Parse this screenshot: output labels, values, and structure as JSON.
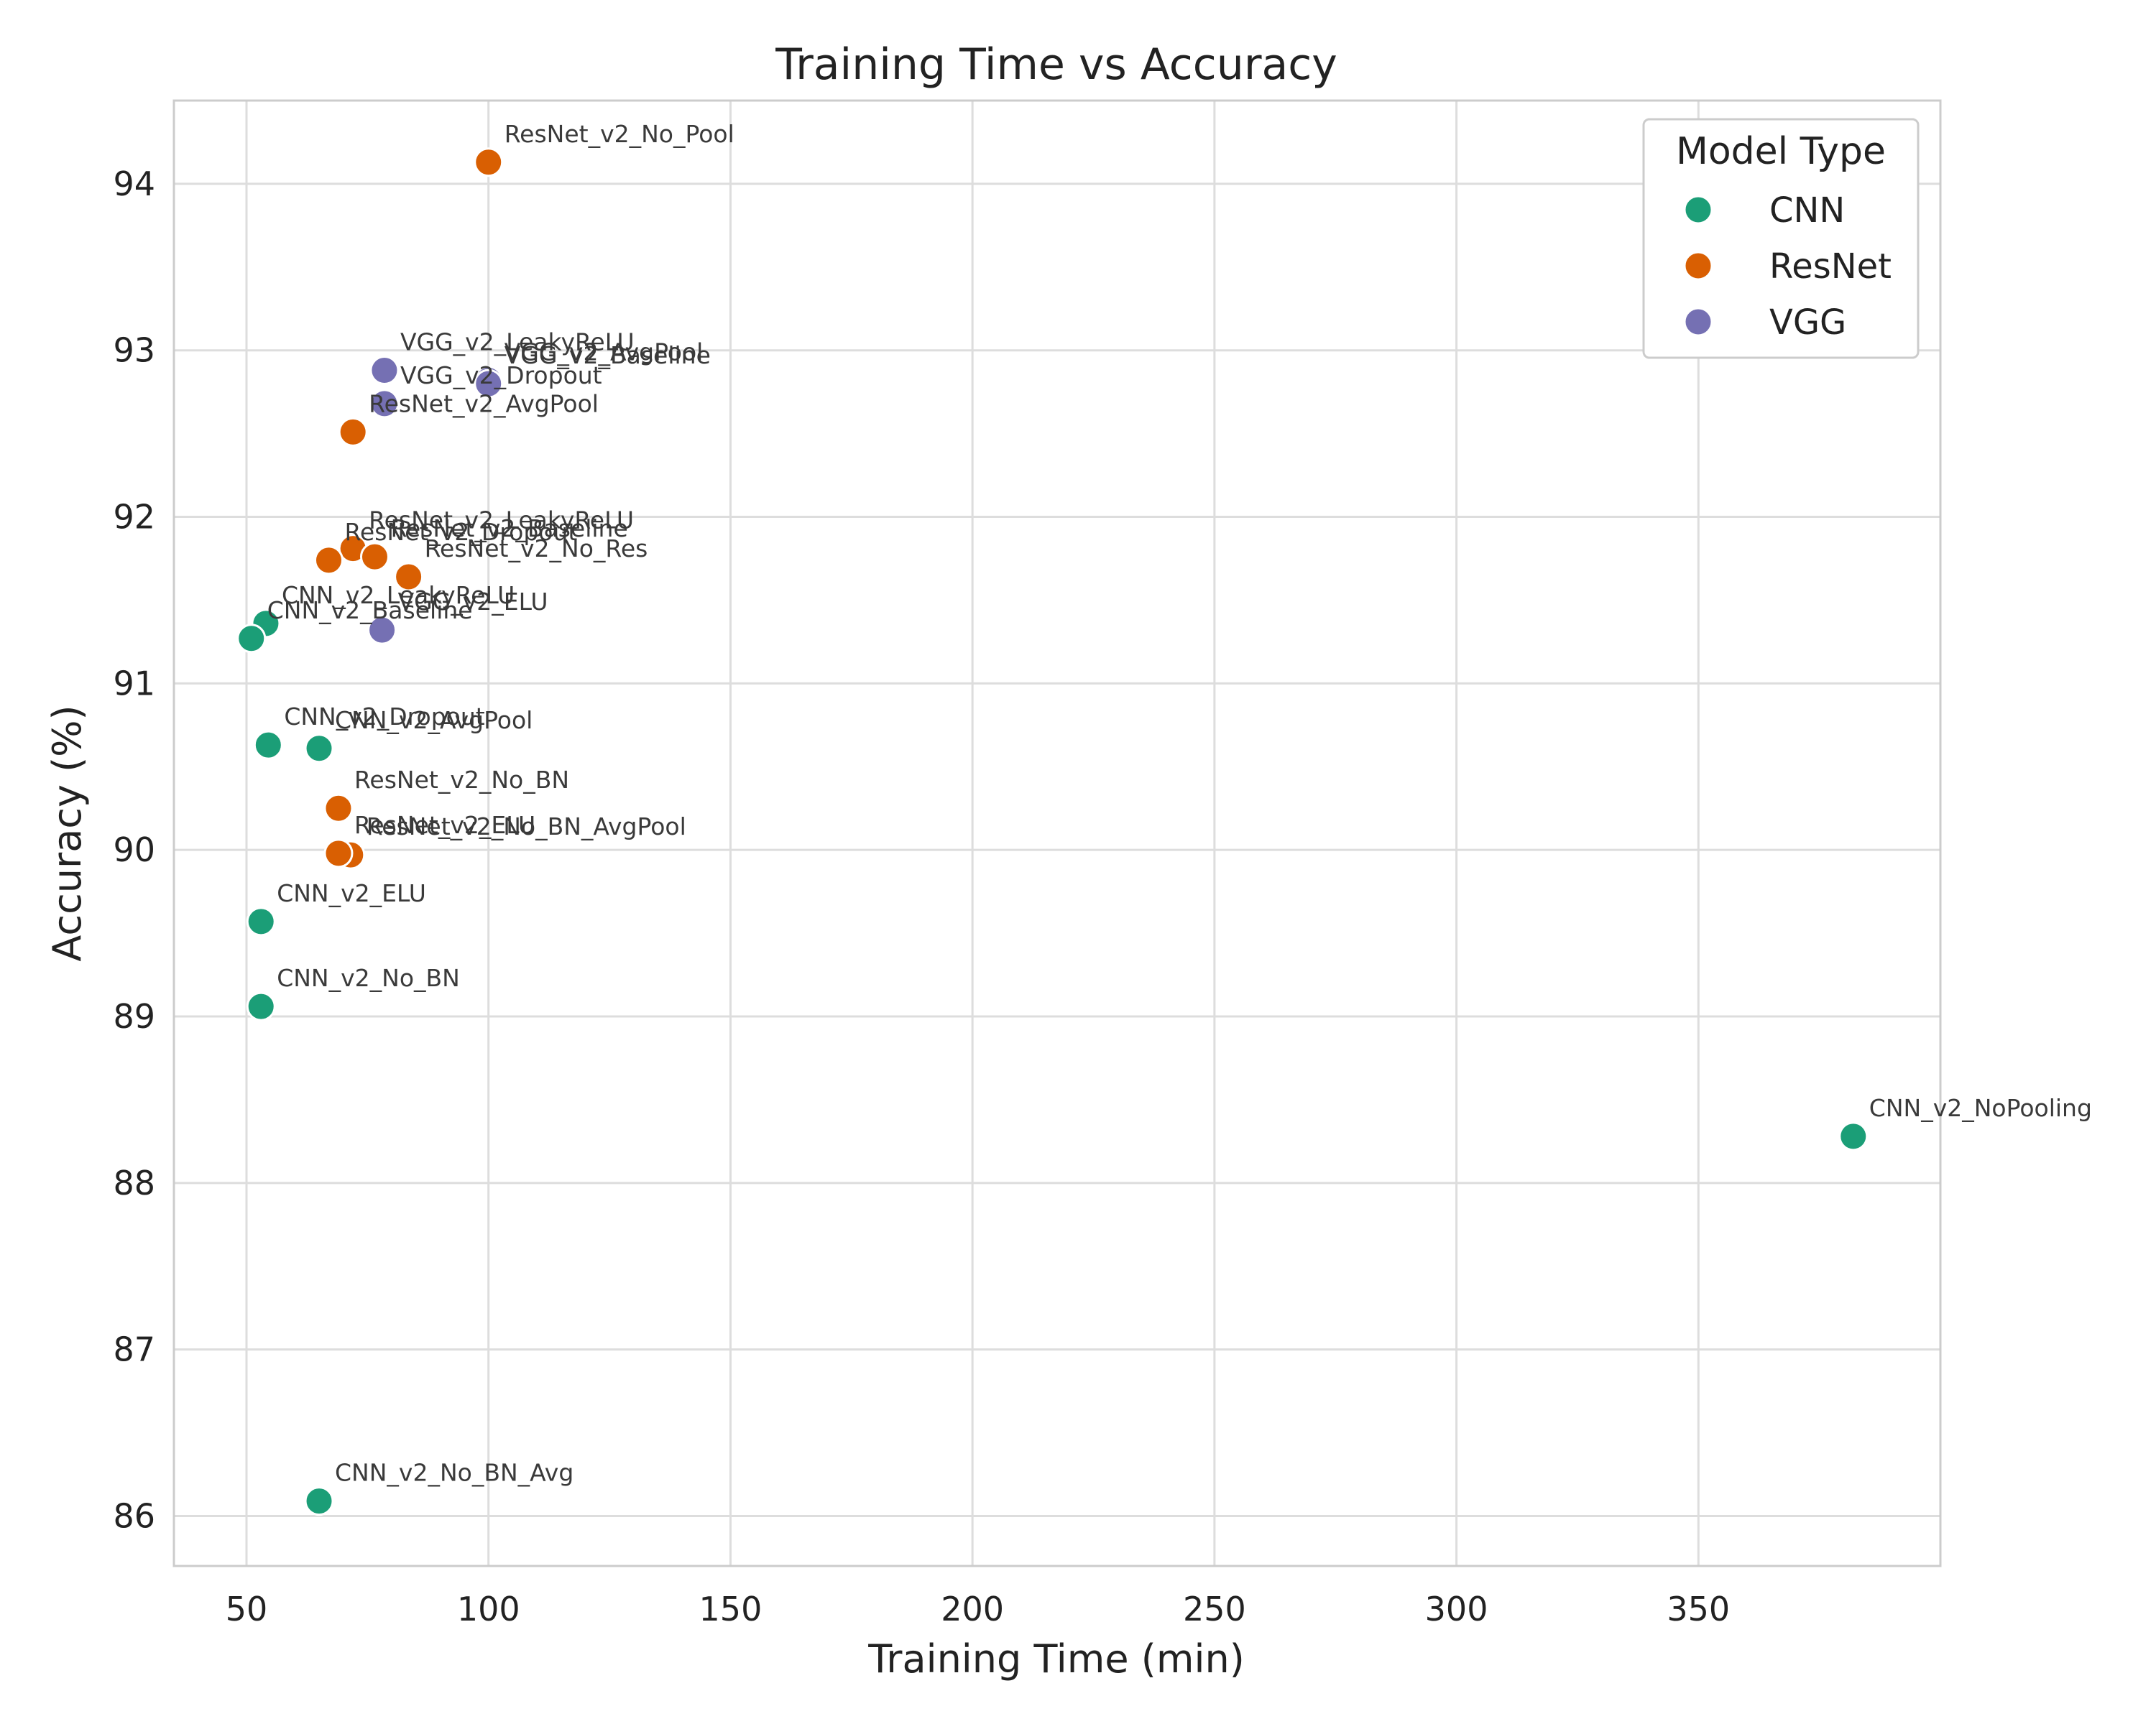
{
  "chart_data": {
    "type": "scatter",
    "title": "Training Time vs Accuracy",
    "xlabel": "Training Time (min)",
    "ylabel": "Accuracy (%)",
    "xlim": [
      35,
      400
    ],
    "ylim": [
      85.7,
      94.5
    ],
    "xticks": [
      50,
      100,
      150,
      200,
      250,
      300,
      350
    ],
    "yticks": [
      86,
      87,
      88,
      89,
      90,
      91,
      92,
      93,
      94
    ],
    "grid": true,
    "legend": {
      "title": "Model Type",
      "position": "top-right",
      "entries": [
        "CNN",
        "ResNet",
        "VGG"
      ]
    },
    "colors": {
      "CNN": "#1b9e77",
      "ResNet": "#d95f02",
      "VGG": "#7570b3"
    },
    "points": [
      {
        "label": "ResNet_v2_No_Pool",
        "series": "ResNet",
        "x": 100,
        "y": 94.13
      },
      {
        "label": "VGG_v2_LeakyReLU",
        "series": "VGG",
        "x": 78.5,
        "y": 92.88
      },
      {
        "label": "VGG_v2_AvgPool",
        "series": "VGG",
        "x": 100,
        "y": 92.82
      },
      {
        "label": "VGG_v2_Baseline",
        "series": "VGG",
        "x": 100,
        "y": 92.8
      },
      {
        "label": "VGG_v2_Dropout",
        "series": "VGG",
        "x": 78.5,
        "y": 92.68
      },
      {
        "label": "ResNet_v2_AvgPool",
        "series": "ResNet",
        "x": 72,
        "y": 92.51
      },
      {
        "label": "ResNet_v2_LeakyReLU",
        "series": "ResNet",
        "x": 72,
        "y": 91.81
      },
      {
        "label": "ResNet_v2_Baseline",
        "series": "ResNet",
        "x": 76.5,
        "y": 91.76
      },
      {
        "label": "ResNet_v2_Dropout",
        "series": "ResNet",
        "x": 67,
        "y": 91.74
      },
      {
        "label": "ResNet_v2_No_Res",
        "series": "ResNet",
        "x": 83.5,
        "y": 91.64
      },
      {
        "label": "CNN_v2_LeakyReLU",
        "series": "CNN",
        "x": 54,
        "y": 91.36
      },
      {
        "label": "CNN_v2_Baseline",
        "series": "CNN",
        "x": 51,
        "y": 91.27
      },
      {
        "label": "VGG_v2_ELU",
        "series": "VGG",
        "x": 78,
        "y": 91.32
      },
      {
        "label": "CNN_v2_Dropout",
        "series": "CNN",
        "x": 54.5,
        "y": 90.63
      },
      {
        "label": "CNN_v2_AvgPool",
        "series": "CNN",
        "x": 65,
        "y": 90.61
      },
      {
        "label": "ResNet_v2_No_BN",
        "series": "ResNet",
        "x": 69,
        "y": 90.25
      },
      {
        "label": "ResNet_v2_No_BN_AvgPool",
        "series": "ResNet",
        "x": 71.5,
        "y": 89.97
      },
      {
        "label": "ResNet_v2_ELU",
        "series": "ResNet",
        "x": 69,
        "y": 89.98
      },
      {
        "label": "CNN_v2_ELU",
        "series": "CNN",
        "x": 53,
        "y": 89.57
      },
      {
        "label": "CNN_v2_No_BN",
        "series": "CNN",
        "x": 53,
        "y": 89.06
      },
      {
        "label": "CNN_v2_NoPooling",
        "series": "CNN",
        "x": 382,
        "y": 88.28
      },
      {
        "label": "CNN_v2_No_BN_Avg",
        "series": "CNN",
        "x": 65,
        "y": 86.09
      }
    ]
  }
}
